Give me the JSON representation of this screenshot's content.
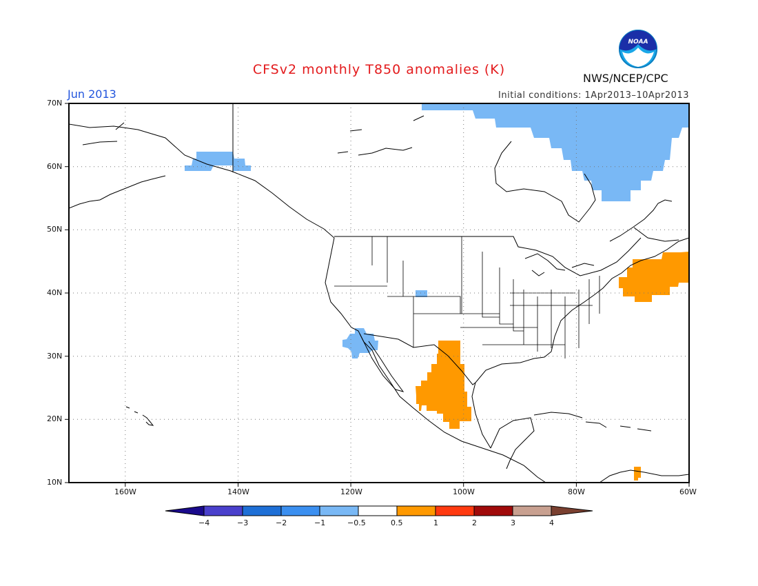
{
  "header": {
    "title": "CFSv2 monthly T850 anomalies (K)",
    "period": "Jun 2013",
    "initial_conditions": "Initial conditions: 1Apr2013–10Apr2013",
    "organization": "NWS/NCEP/CPC",
    "logo_text": "NOAA"
  },
  "map": {
    "projection": "lat-lon",
    "lon_range": [
      -170,
      -60
    ],
    "lat_range": [
      10,
      70
    ],
    "lat_labels": [
      "70N",
      "60N",
      "50N",
      "40N",
      "30N",
      "20N",
      "10N"
    ],
    "lon_labels": [
      "160W",
      "140W",
      "120W",
      "100W",
      "80W",
      "60W"
    ],
    "grid": "dotted"
  },
  "legend": {
    "tick_labels": [
      "−4",
      "−3",
      "−2",
      "−1",
      "−0.5",
      "0.5",
      "1",
      "2",
      "3",
      "4"
    ],
    "bins": [
      {
        "range": "< -4",
        "color": "#1a0a8c"
      },
      {
        "range": "-4 to -3",
        "color": "#4a40cc"
      },
      {
        "range": "-3 to -2",
        "color": "#1e6fd6"
      },
      {
        "range": "-2 to -1",
        "color": "#3b8ff0"
      },
      {
        "range": "-1 to -0.5",
        "color": "#79b8f5"
      },
      {
        "range": "-0.5 to 0.5",
        "color": "#ffffff"
      },
      {
        "range": "0.5 to 1",
        "color": "#ff9900"
      },
      {
        "range": "1 to 2",
        "color": "#ff3a10"
      },
      {
        "range": "2 to 3",
        "color": "#a00a0a"
      },
      {
        "range": "3 to 4",
        "color": "#c8a090"
      },
      {
        "range": "> 4",
        "color": "#7a4030"
      }
    ]
  },
  "anomaly_regions": [
    {
      "name": "Baffin / Hudson Bay",
      "category": "-1 to -0.5",
      "color": "#79b8f5"
    },
    {
      "name": "Southern Alaska",
      "category": "-1 to -0.5",
      "color": "#79b8f5"
    },
    {
      "name": "Southern California coast",
      "category": "-1 to -0.5",
      "color": "#79b8f5"
    },
    {
      "name": "Colorado",
      "category": "-1 to -0.5",
      "color": "#79b8f5"
    },
    {
      "name": "Northeastern Mexico",
      "category": "0.5 to 1",
      "color": "#ff9900"
    },
    {
      "name": "Northwest Atlantic",
      "category": "0.5 to 1",
      "color": "#ff9900"
    },
    {
      "name": "Venezuela coast",
      "category": "0.5 to 1",
      "color": "#ff9900"
    }
  ]
}
